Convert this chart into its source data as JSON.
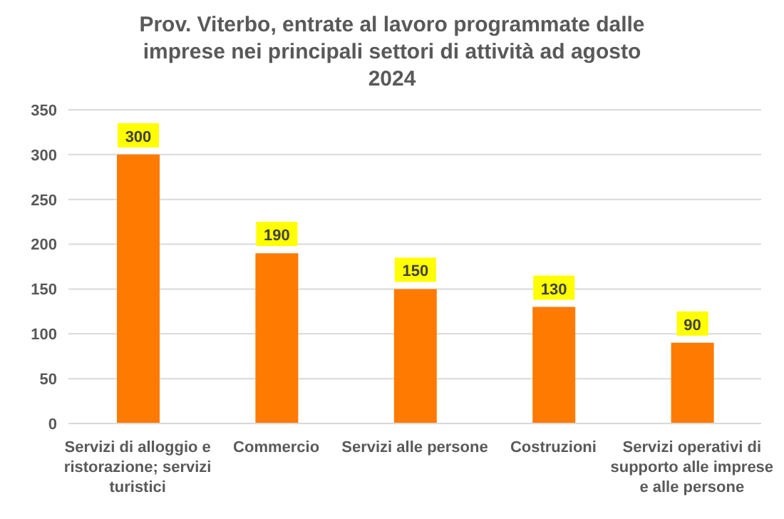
{
  "chart_data": {
    "type": "bar",
    "title": "Prov. Viterbo, entrate al lavoro programmate dalle imprese nei principali settori di attività ad agosto 2024",
    "categories": [
      "Servizi di alloggio e ristorazione; servizi turistici",
      "Commercio",
      "Servizi alle persone",
      "Costruzioni",
      "Servizi operativi di supporto alle imprese e alle persone"
    ],
    "values": [
      300,
      190,
      150,
      130,
      90
    ],
    "color": "#ff7a00",
    "ylim": [
      0,
      350
    ],
    "yticks": [
      0,
      50,
      100,
      150,
      200,
      250,
      300,
      350
    ],
    "grid": "y",
    "data_labels": true
  }
}
